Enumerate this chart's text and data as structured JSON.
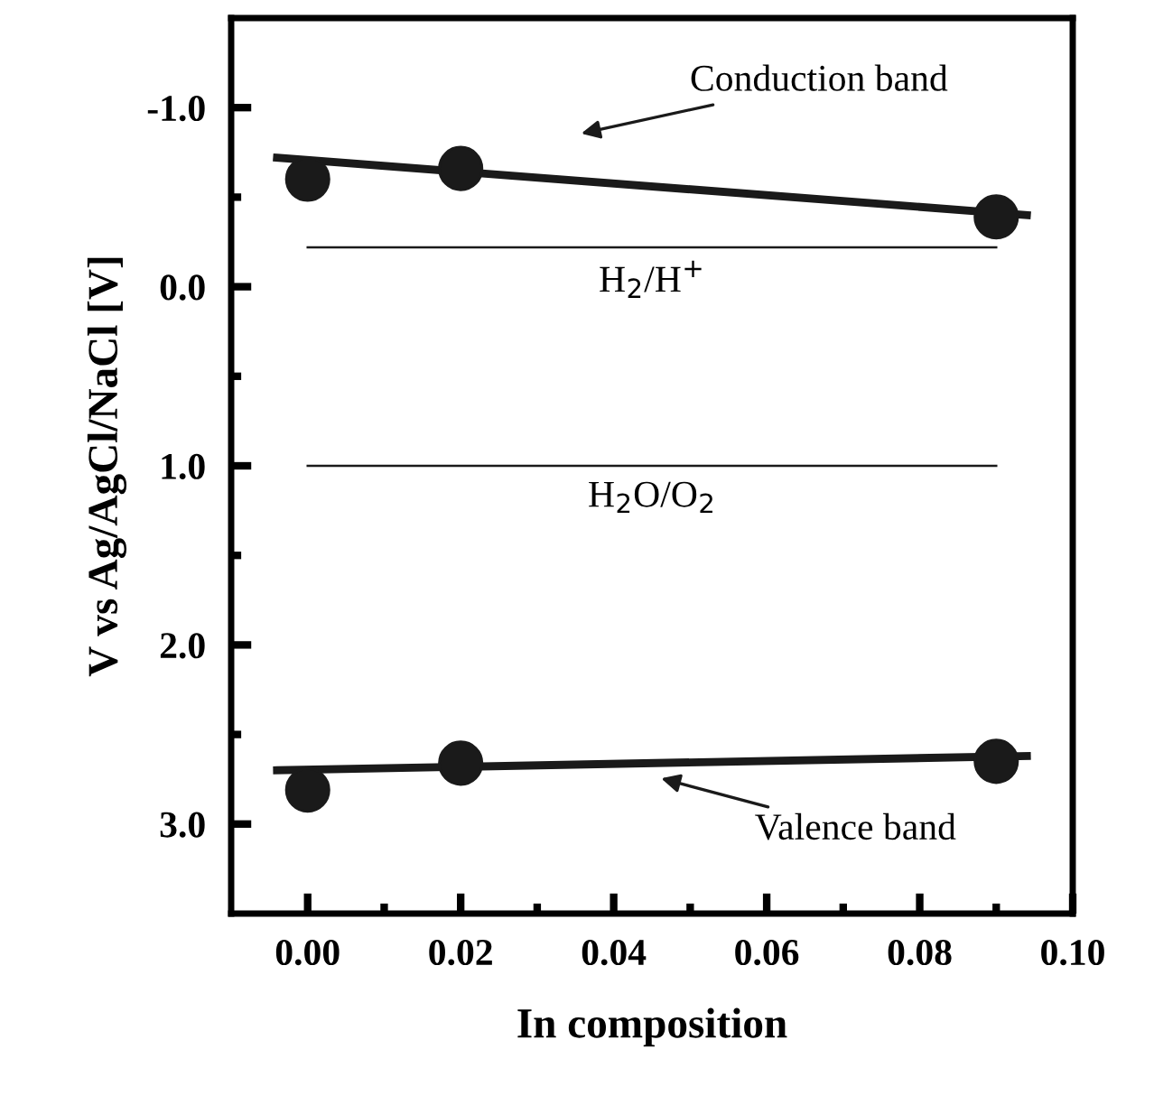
{
  "chart_data": {
    "type": "scatter",
    "xlabel": "In composition",
    "ylabel": "V vs Ag/AgCl/NaCl [V]",
    "xlim": [
      -0.01,
      0.1
    ],
    "ylim": [
      3.5,
      -1.5
    ],
    "xticks": [
      {
        "value": 0.0,
        "label": "0.00"
      },
      {
        "value": 0.01,
        "label": null
      },
      {
        "value": 0.02,
        "label": "0.02"
      },
      {
        "value": 0.03,
        "label": null
      },
      {
        "value": 0.04,
        "label": "0.04"
      },
      {
        "value": 0.05,
        "label": null
      },
      {
        "value": 0.06,
        "label": "0.06"
      },
      {
        "value": 0.07,
        "label": null
      },
      {
        "value": 0.08,
        "label": "0.08"
      },
      {
        "value": 0.09,
        "label": null
      },
      {
        "value": 0.1,
        "label": "0.10"
      }
    ],
    "yticks": [
      {
        "value": -1.0,
        "label": "-1.0"
      },
      {
        "value": -0.5,
        "label": null
      },
      {
        "value": 0.0,
        "label": "0.0"
      },
      {
        "value": 0.5,
        "label": null
      },
      {
        "value": 1.0,
        "label": "1.0"
      },
      {
        "value": 1.5,
        "label": null
      },
      {
        "value": 2.0,
        "label": "2.0"
      },
      {
        "value": 2.5,
        "label": null
      },
      {
        "value": 3.0,
        "label": "3.0"
      }
    ],
    "marker": "circle",
    "grid": false,
    "series": [
      {
        "color": "#1a1a1a",
        "x": [
          0.0,
          0.02,
          0.09
        ],
        "values": [
          -0.6,
          -0.66,
          -0.39
        ]
      },
      {
        "type": "line",
        "color": "#1a1a1a",
        "marker": "none",
        "x": [
          -0.004,
          0.094
        ],
        "values": [
          -0.72,
          -0.4
        ]
      },
      {
        "color": "#1a1a1a",
        "x": [
          0.0,
          0.02,
          0.09
        ],
        "values": [
          2.81,
          2.66,
          2.65
        ]
      },
      {
        "type": "line",
        "color": "#1a1a1a",
        "marker": "none",
        "x": [
          -0.004,
          0.094
        ],
        "values": [
          2.7,
          2.62
        ]
      }
    ],
    "ref_lines": [
      {
        "axis": "y",
        "value": -0.22,
        "label": "H$_{2}$/H$^{+}$",
        "color": "#1a1a1a"
      },
      {
        "axis": "y",
        "value": 1.0,
        "label": "H$_{2}$O/O$_{2}$",
        "color": "#1a1a1a"
      }
    ],
    "annotations": [
      "Conduction band",
      "Valence band"
    ]
  }
}
